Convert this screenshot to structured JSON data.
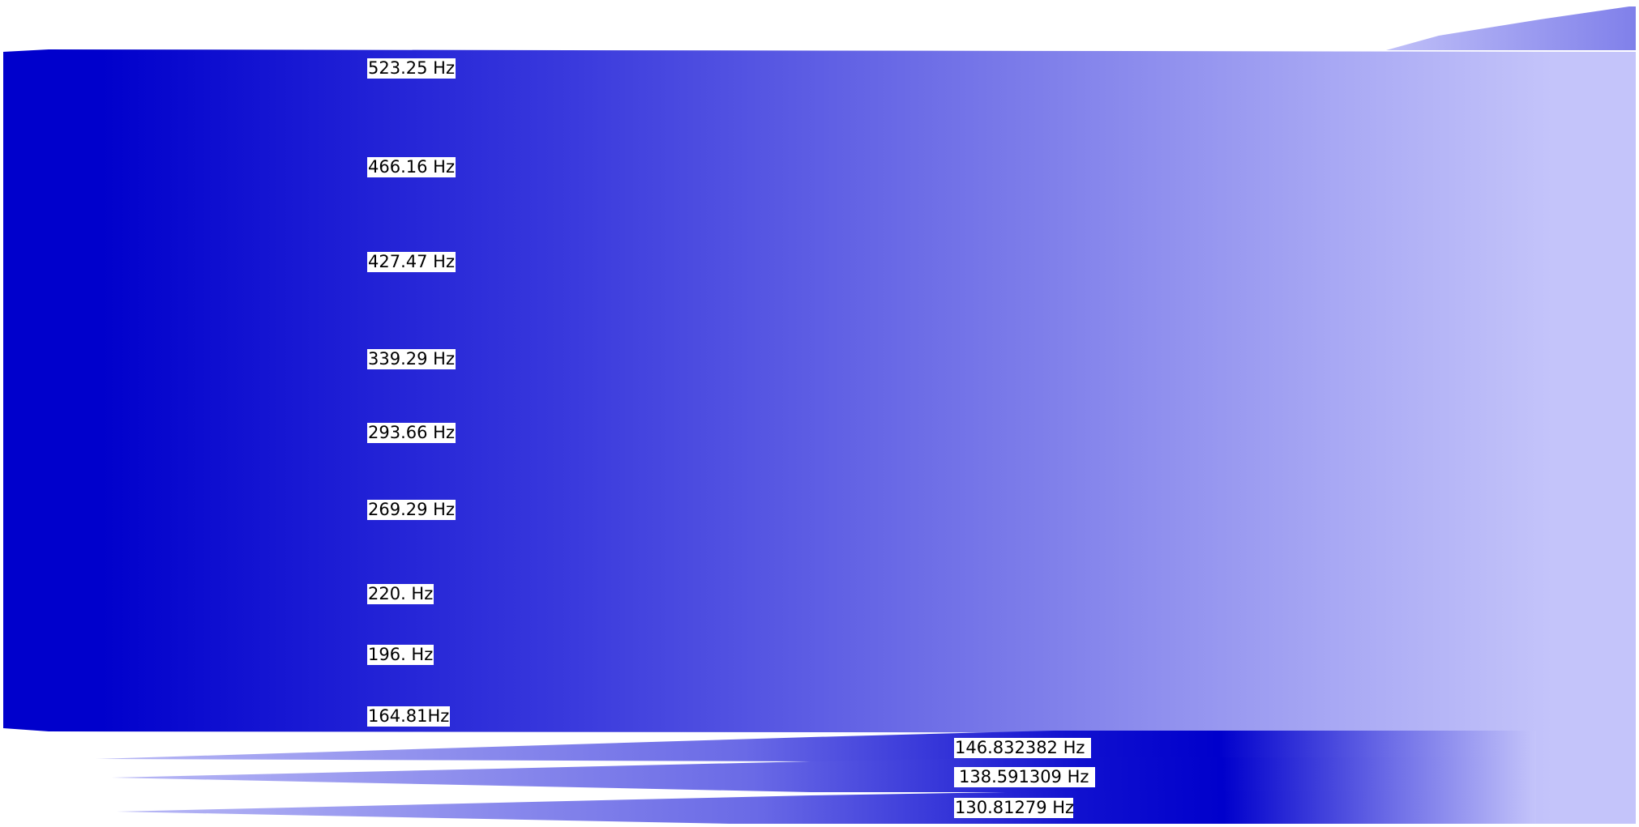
{
  "colors": {
    "deep_blue": "#0000cc",
    "mid_blue": "#5555e0",
    "pale_blue": "#c4c4fa",
    "label_background": "#ffffff"
  },
  "upper_band": {
    "labels": [
      "523.25 Hz",
      "466.16 Hz",
      "427.47 Hz",
      "339.29 Hz",
      "293.66 Hz",
      "269.29 Hz",
      "220. Hz",
      "196. Hz",
      "164.81Hz"
    ]
  },
  "lower_band": {
    "labels": [
      "146.832382 Hz",
      "138.591309 Hz",
      "130.81279 Hz"
    ]
  }
}
